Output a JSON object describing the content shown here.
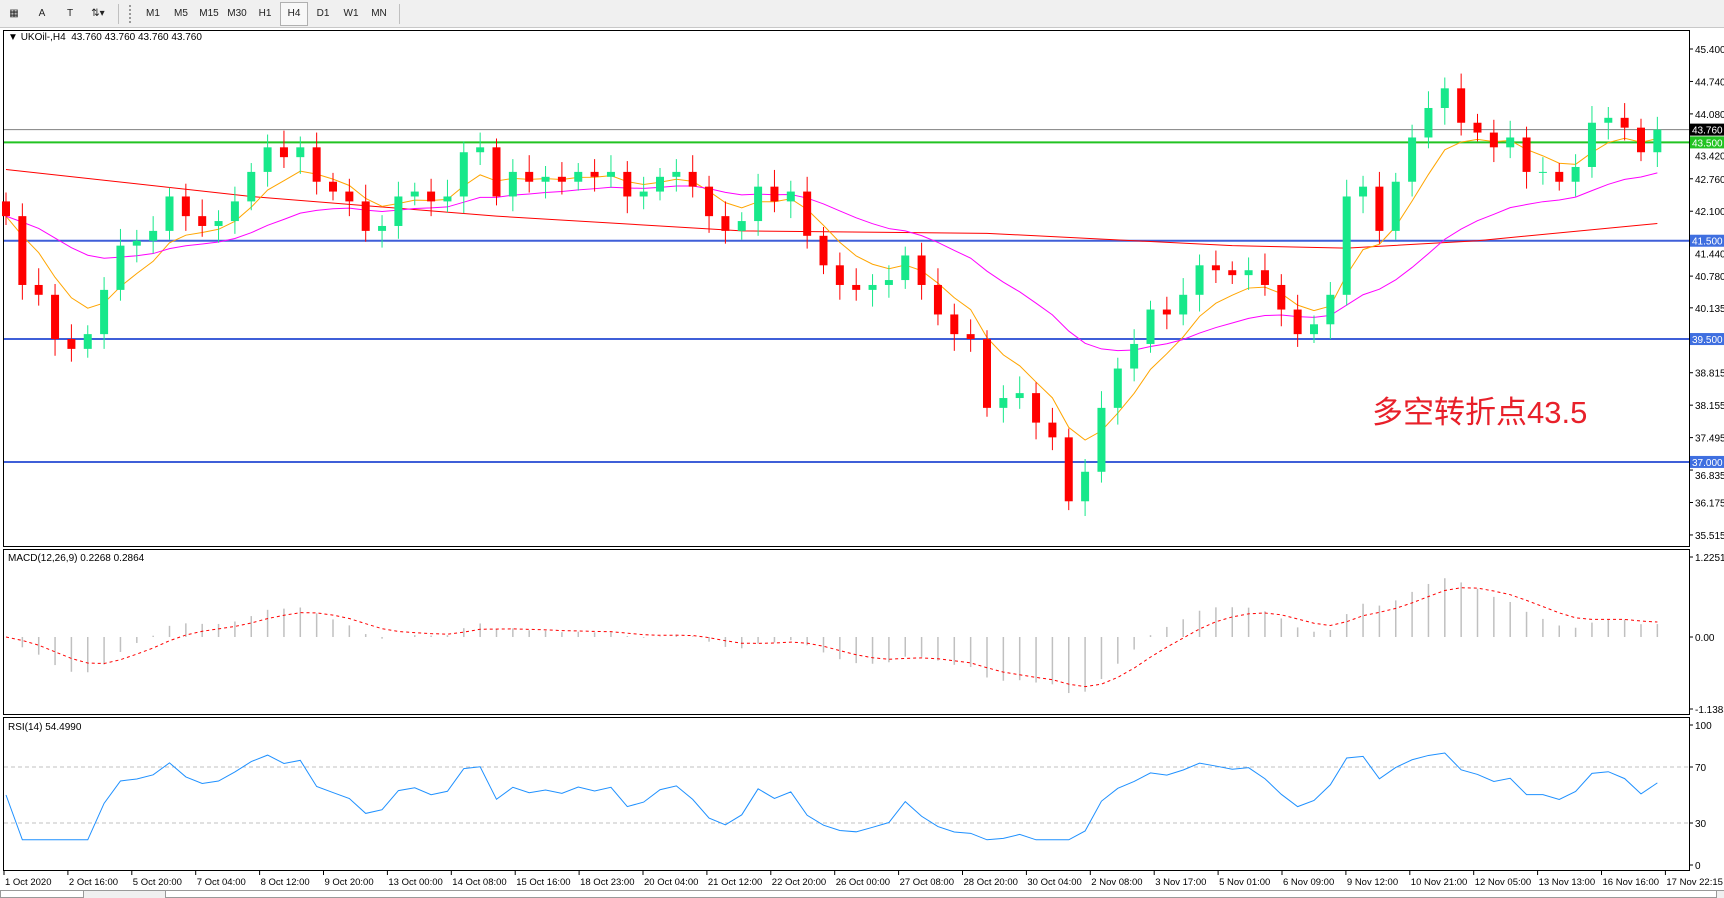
{
  "toolbar": {
    "tools": [
      {
        "name": "grid-tool",
        "glyph": "▦"
      },
      {
        "name": "text-tool",
        "glyph": "A"
      },
      {
        "name": "text-label-tool",
        "glyph": "T"
      },
      {
        "name": "arrows-tool",
        "glyph": "⇅▾"
      }
    ],
    "timeframes": [
      "M1",
      "M5",
      "M15",
      "M30",
      "H1",
      "H4",
      "D1",
      "W1",
      "MN"
    ],
    "active_timeframe": "H4"
  },
  "main": {
    "header": "UKOil-,H4  43.760 43.760 43.760 43.760",
    "annotation": "多空转折点43.5",
    "current_price": "43.760",
    "price_axis": [
      "45.400",
      "44.740",
      "44.080",
      "43.420",
      "42.760",
      "42.100",
      "41.440",
      "40.780",
      "40.135",
      "38.815",
      "38.155",
      "37.495",
      "36.835",
      "36.175",
      "35.515"
    ],
    "levels": [
      {
        "value": 43.76,
        "label": "43.760",
        "color": "#808080",
        "tag_bg": "#000000"
      },
      {
        "value": 43.5,
        "label": "43.500",
        "color": "#22c322",
        "tag_bg": "#22c322"
      },
      {
        "value": 41.5,
        "label": "41.500",
        "color": "#3f5fd8",
        "tag_bg": "#3f6fe0"
      },
      {
        "value": 39.5,
        "label": "39.500",
        "color": "#3f5fd8",
        "tag_bg": "#3f6fe0"
      },
      {
        "value": 37.0,
        "label": "37.000",
        "color": "#3f5fd8",
        "tag_bg": "#3f6fe0"
      }
    ]
  },
  "macd": {
    "header": "MACD(12,26,9) 0.2268 0.2864",
    "axis": [
      "1.2251",
      "0.00",
      "-1.1383"
    ]
  },
  "rsi": {
    "header": "RSI(14) 54.4990",
    "axis": [
      "100",
      "70",
      "30",
      "0"
    ]
  },
  "time_axis": [
    "1 Oct 2020",
    "2 Oct 16:00",
    "5 Oct 20:00",
    "7 Oct 04:00",
    "8 Oct 12:00",
    "9 Oct 20:00",
    "13 Oct 00:00",
    "14 Oct 08:00",
    "15 Oct 16:00",
    "18 Oct 23:00",
    "20 Oct 04:00",
    "21 Oct 12:00",
    "22 Oct 20:00",
    "26 Oct 00:00",
    "27 Oct 08:00",
    "28 Oct 20:00",
    "30 Oct 04:00",
    "2 Nov 08:00",
    "3 Nov 17:00",
    "5 Nov 01:00",
    "6 Nov 09:00",
    "9 Nov 12:00",
    "10 Nov 21:00",
    "12 Nov 05:00",
    "13 Nov 13:00",
    "16 Nov 16:00",
    "17 Nov 22:15"
  ],
  "colors": {
    "up": "#17e88a",
    "down": "#ff0000",
    "ma_fast": "#ffa500",
    "ma_mid": "#ff00ff",
    "ma_slow": "#ff0000",
    "rsi": "#1e90ff",
    "macd_hist": "#c0c0c0",
    "macd_signal": "#ff0000"
  },
  "chart_data": {
    "type": "candlestick",
    "symbol": "UKOil-",
    "timeframe": "H4",
    "price_range": [
      35.515,
      45.4
    ],
    "close": [
      42.0,
      40.6,
      40.4,
      39.5,
      39.3,
      39.6,
      40.5,
      41.4,
      41.5,
      41.7,
      42.4,
      42.0,
      41.8,
      41.9,
      42.3,
      42.9,
      43.4,
      43.2,
      43.4,
      42.7,
      42.5,
      42.3,
      41.7,
      41.8,
      42.4,
      42.5,
      42.3,
      42.4,
      43.3,
      43.4,
      42.4,
      42.9,
      42.7,
      42.8,
      42.7,
      42.9,
      42.8,
      42.9,
      42.4,
      42.5,
      42.8,
      42.9,
      42.6,
      42.0,
      41.7,
      41.9,
      42.6,
      42.3,
      42.5,
      41.6,
      41.0,
      40.6,
      40.5,
      40.6,
      40.7,
      41.2,
      40.6,
      40.0,
      39.6,
      39.5,
      38.1,
      38.3,
      38.4,
      37.8,
      37.5,
      36.2,
      36.8,
      38.1,
      38.9,
      39.4,
      40.1,
      40.0,
      40.4,
      41.0,
      40.9,
      40.8,
      40.9,
      40.6,
      40.1,
      39.6,
      39.8,
      40.4,
      42.4,
      42.6,
      41.7,
      42.7,
      43.6,
      44.2,
      44.6,
      43.9,
      43.7,
      43.4,
      43.6,
      42.9,
      42.9,
      42.7,
      43.0,
      43.9,
      44.0,
      43.8,
      43.3,
      43.76
    ],
    "slow_ma": [
      [
        0,
        42.95
      ],
      [
        15,
        42.4
      ],
      [
        30,
        42.0
      ],
      [
        45,
        41.7
      ],
      [
        60,
        41.65
      ],
      [
        75,
        41.4
      ],
      [
        82,
        41.35
      ],
      [
        90,
        41.5
      ],
      [
        101,
        41.85
      ]
    ],
    "macd_range": [
      -1.1383,
      1.2251
    ],
    "rsi_range": [
      0,
      100
    ],
    "rsi_levels": [
      70,
      30
    ]
  }
}
